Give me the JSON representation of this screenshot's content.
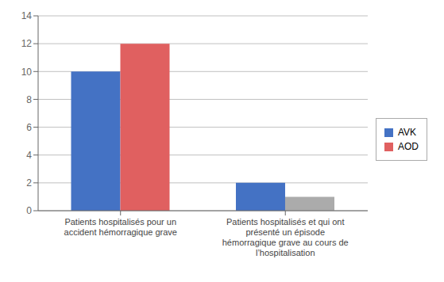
{
  "chart_data": {
    "type": "bar",
    "categories": [
      "Patients hospitalisés pour un\naccident hémorragique grave",
      "Patients hospitalisés et qui ont\nprésenté un épisode\nhémorragique grave au cours de\nl’hospitalisation"
    ],
    "series": [
      {
        "name": "AVK",
        "color": "#4472C4",
        "values": [
          10,
          2
        ]
      },
      {
        "name": "AOD",
        "colors": [
          "#E06060",
          "#ABABAB"
        ],
        "values": [
          12,
          1
        ]
      }
    ],
    "ylim": [
      0,
      14
    ],
    "yticks": [
      0,
      2,
      4,
      6,
      8,
      10,
      12,
      14
    ],
    "grid": true,
    "legend": "right"
  }
}
